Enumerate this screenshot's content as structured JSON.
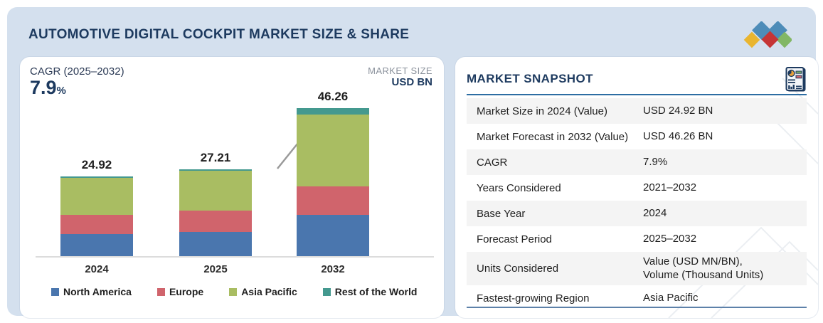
{
  "header": {
    "title": "AUTOMOTIVE DIGITAL COCKPIT MARKET SIZE & SHARE",
    "logo_colors": {
      "yellow": "#e9b52f",
      "blue": "#4d8cb8",
      "red": "#c53536",
      "green": "#82b765"
    }
  },
  "chart_panel": {
    "cagr_label": "CAGR (2025–2032)",
    "cagr_value": "7.9",
    "cagr_unit": "%",
    "market_size_label": "MARKET SIZE",
    "market_size_unit": "USD BN"
  },
  "chart_data": {
    "type": "bar",
    "stacked": true,
    "title": "Automotive Digital Cockpit Market Size",
    "ylabel": "USD BN",
    "categories": [
      "2024",
      "2025",
      "2032"
    ],
    "totals": [
      24.92,
      27.21,
      46.26
    ],
    "total_labels": [
      "24.92",
      "27.21",
      "46.26"
    ],
    "series": [
      {
        "name": "North America",
        "color": "#4a76ae",
        "values": [
          6.93,
          7.56,
          12.85
        ]
      },
      {
        "name": "Europe",
        "color": "#d0646c",
        "values": [
          5.98,
          6.8,
          8.93
        ]
      },
      {
        "name": "Asia Pacific",
        "color": "#a9bd62",
        "values": [
          11.54,
          12.33,
          22.61
        ]
      },
      {
        "name": "Rest of the World",
        "color": "#44998f",
        "values": [
          0.47,
          0.52,
          1.87
        ]
      }
    ],
    "legend_position": "bottom",
    "grid": false,
    "annotations": [
      "growth arrow from 2025 bar top to 2032 bar top"
    ]
  },
  "snapshot": {
    "title": "MARKET SNAPSHOT",
    "rows": [
      {
        "label": "Market Size in 2024 (Value)",
        "value": "USD 24.92 BN"
      },
      {
        "label": "Market Forecast in 2032 (Value)",
        "value": "USD 46.26 BN"
      },
      {
        "label": "CAGR",
        "value": "7.9%"
      },
      {
        "label": "Years Considered",
        "value": "2021–2032"
      },
      {
        "label": "Base Year",
        "value": "2024"
      },
      {
        "label": "Forecast Period",
        "value": "2025–2032"
      },
      {
        "label": "Units Considered",
        "value": "Value (USD MN/BN),\nVolume (Thousand Units)"
      },
      {
        "label": "Fastest-growing Region",
        "value": "Asia Pacific"
      }
    ]
  }
}
